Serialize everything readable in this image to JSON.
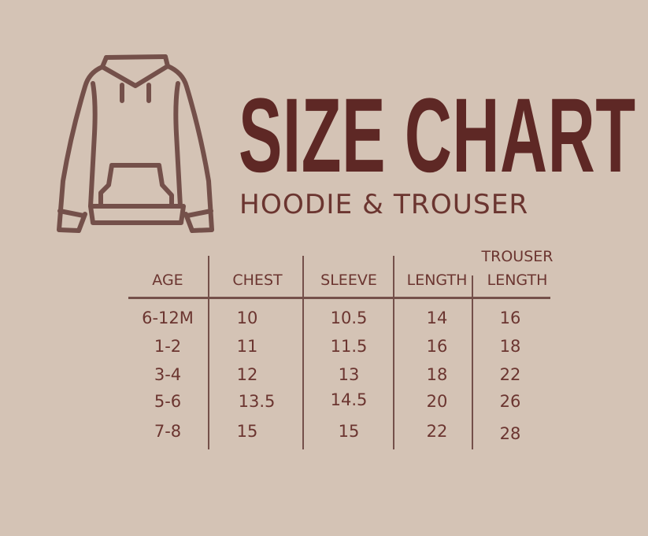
{
  "title": "SIZE CHART",
  "subtitle": "HOODIE & TROUSER",
  "colors": {
    "background": "#d4c3b5",
    "title": "#5e2825",
    "text": "#6b3530",
    "lines": "#74504a"
  },
  "icon": "hoodie-icon",
  "table": {
    "headers": [
      "AGE",
      "CHEST",
      "SLEEVE",
      "LENGTH",
      "TROUSER LENGTH"
    ],
    "header_lines": {
      "trouser_top": "TROUSER",
      "trouser_bottom": "LENGTH"
    },
    "rows": [
      [
        "6-12M",
        "10",
        "10.5",
        "14",
        "16"
      ],
      [
        "1-2",
        "11",
        "11.5",
        "16",
        "18"
      ],
      [
        "3-4",
        "12",
        "13",
        "18",
        "22"
      ],
      [
        "5-6",
        "13.5",
        "14.5",
        "20",
        "26"
      ],
      [
        "7-8",
        "15",
        "15",
        "22",
        "28"
      ]
    ]
  }
}
